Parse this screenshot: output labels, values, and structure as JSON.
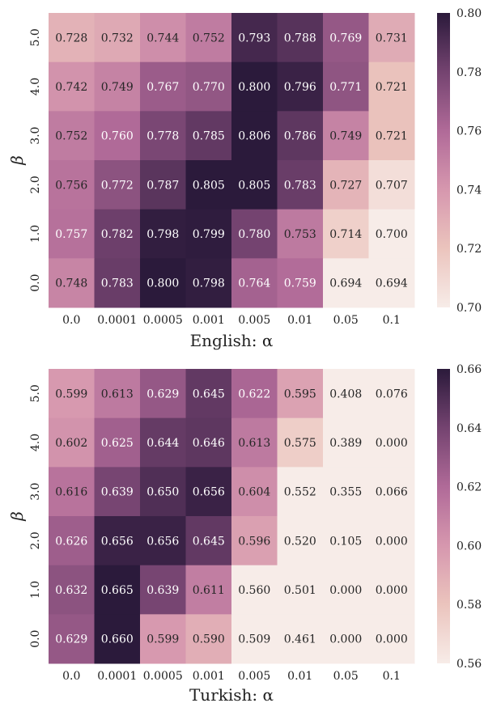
{
  "chart_data": [
    {
      "type": "heatmap",
      "title": "",
      "xlabel": "English: α",
      "ylabel": "β",
      "x_categories": [
        "0.0",
        "0.0001",
        "0.0005",
        "0.001",
        "0.005",
        "0.01",
        "0.05",
        "0.1"
      ],
      "y_categories": [
        "5.0",
        "4.0",
        "3.0",
        "2.0",
        "1.0",
        "0.0"
      ],
      "values": [
        [
          0.728,
          0.732,
          0.744,
          0.752,
          0.793,
          0.788,
          0.769,
          0.731
        ],
        [
          0.742,
          0.749,
          0.767,
          0.77,
          0.8,
          0.796,
          0.771,
          0.721
        ],
        [
          0.752,
          0.76,
          0.778,
          0.785,
          0.806,
          0.786,
          0.749,
          0.721
        ],
        [
          0.756,
          0.772,
          0.787,
          0.805,
          0.805,
          0.783,
          0.727,
          0.707
        ],
        [
          0.757,
          0.782,
          0.798,
          0.799,
          0.78,
          0.753,
          0.714,
          0.7
        ],
        [
          0.748,
          0.783,
          0.8,
          0.798,
          0.764,
          0.759,
          0.694,
          0.694
        ]
      ],
      "colorbar": {
        "min": 0.7,
        "max": 0.8,
        "ticks": [
          "0.70",
          "0.72",
          "0.74",
          "0.76",
          "0.78",
          "0.80"
        ]
      },
      "grid": false
    },
    {
      "type": "heatmap",
      "title": "",
      "xlabel": "Turkish: α",
      "ylabel": "β",
      "x_categories": [
        "0.0",
        "0.0001",
        "0.0005",
        "0.001",
        "0.005",
        "0.01",
        "0.05",
        "0.1"
      ],
      "y_categories": [
        "5.0",
        "4.0",
        "3.0",
        "2.0",
        "1.0",
        "0.0"
      ],
      "values": [
        [
          0.599,
          0.613,
          0.629,
          0.645,
          0.622,
          0.595,
          0.408,
          0.076
        ],
        [
          0.602,
          0.625,
          0.644,
          0.646,
          0.613,
          0.575,
          0.389,
          0.0
        ],
        [
          0.616,
          0.639,
          0.65,
          0.656,
          0.604,
          0.552,
          0.355,
          0.066
        ],
        [
          0.626,
          0.656,
          0.656,
          0.645,
          0.596,
          0.52,
          0.105,
          0.0
        ],
        [
          0.632,
          0.665,
          0.639,
          0.611,
          0.56,
          0.501,
          0.0,
          0.0
        ],
        [
          0.629,
          0.66,
          0.599,
          0.59,
          0.509,
          0.461,
          0.0,
          0.0
        ]
      ],
      "colorbar": {
        "min": 0.56,
        "max": 0.66,
        "ticks": [
          "0.56",
          "0.58",
          "0.60",
          "0.62",
          "0.64",
          "0.66"
        ]
      },
      "grid": false
    }
  ],
  "colors": {
    "low": "#f7ece8",
    "mid": "#c1779c",
    "high": "#2b1a3b"
  }
}
